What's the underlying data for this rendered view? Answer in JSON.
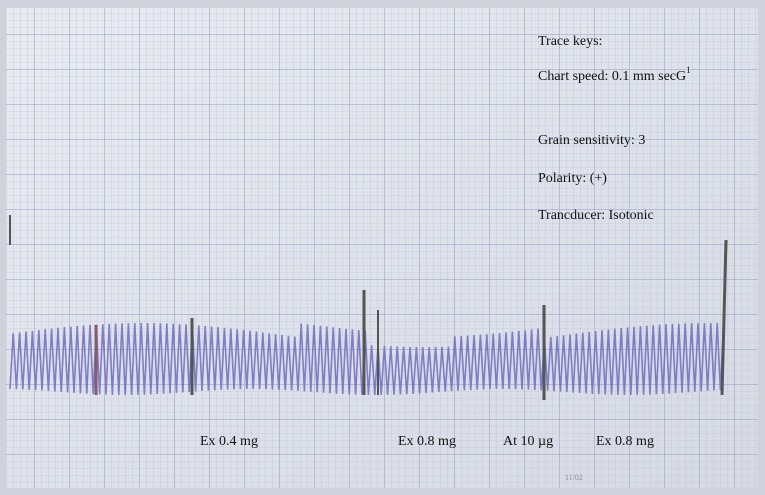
{
  "trace_keys": {
    "title": "Trace keys:",
    "items": [
      {
        "text": "Chart speed: 0.1 mm secG",
        "superscript": "1"
      },
      {
        "text": "Grain sensitivity: 3"
      },
      {
        "text": "Polarity: (+)"
      },
      {
        "text": "Trancducer: Isotonic"
      }
    ]
  },
  "annotations": [
    "Ex 0.4 mg",
    "Ex 0.8 mg",
    "At 10 µg",
    "Ex 0.8 mg"
  ],
  "page_mark": "11/02"
}
